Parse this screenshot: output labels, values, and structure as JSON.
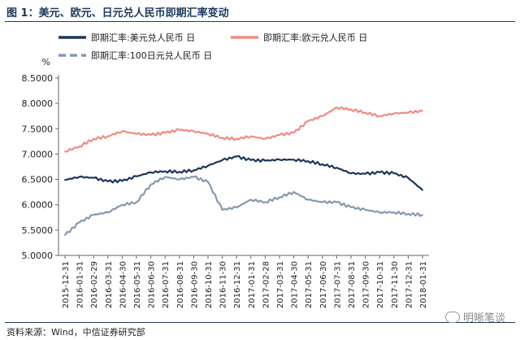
{
  "figure_title": "图 1：美元、欧元、日元兑人民币即期汇率变动",
  "source": "资料来源：Wind，中信证券研究部",
  "watermark": "明晰笔谈",
  "chart_data": {
    "type": "line",
    "unit_label": "%",
    "ylim": [
      5.0,
      8.5
    ],
    "yticks": [
      "8.5000",
      "8.0000",
      "7.5000",
      "7.0000",
      "6.5000",
      "6.0000",
      "5.5000",
      "5.0000"
    ],
    "x": [
      "2015-12-31",
      "2016-01-31",
      "2016-02-29",
      "2016-03-31",
      "2016-04-30",
      "2016-05-31",
      "2016-06-30",
      "2016-07-31",
      "2016-08-31",
      "2016-09-30",
      "2016-10-31",
      "2016-11-30",
      "2016-12-31",
      "2017-01-31",
      "2017-02-28",
      "2017-03-31",
      "2017-04-30",
      "2017-05-31",
      "2017-06-30",
      "2017-07-31",
      "2017-08-31",
      "2017-09-30",
      "2017-10-31",
      "2017-11-30",
      "2017-12-31",
      "2018-01-31"
    ],
    "grid": false,
    "legend_position": "top",
    "series": [
      {
        "name": "即期汇率:美元兑人民币 日",
        "color": "#1b365d",
        "style": "solid",
        "values": [
          6.49,
          6.55,
          6.53,
          6.46,
          6.47,
          6.56,
          6.64,
          6.66,
          6.65,
          6.68,
          6.77,
          6.88,
          6.95,
          6.88,
          6.87,
          6.89,
          6.89,
          6.86,
          6.8,
          6.73,
          6.62,
          6.61,
          6.64,
          6.62,
          6.53,
          6.29
        ]
      },
      {
        "name": "即期汇率:欧元兑人民币 日",
        "color": "#f08a84",
        "style": "solid",
        "values": [
          7.05,
          7.15,
          7.3,
          7.35,
          7.45,
          7.4,
          7.38,
          7.42,
          7.48,
          7.45,
          7.4,
          7.32,
          7.3,
          7.35,
          7.3,
          7.38,
          7.42,
          7.65,
          7.75,
          7.92,
          7.88,
          7.82,
          7.75,
          7.8,
          7.82,
          7.85
        ]
      },
      {
        "name": "即期汇率:100日元兑人民币 日",
        "color": "#8499b0",
        "style": "dashed",
        "values": [
          5.4,
          5.65,
          5.8,
          5.85,
          6.0,
          6.05,
          6.4,
          6.55,
          6.5,
          6.55,
          6.45,
          5.9,
          5.95,
          6.1,
          6.05,
          6.15,
          6.25,
          6.1,
          6.05,
          6.05,
          5.95,
          5.9,
          5.85,
          5.85,
          5.82,
          5.8
        ]
      }
    ]
  }
}
